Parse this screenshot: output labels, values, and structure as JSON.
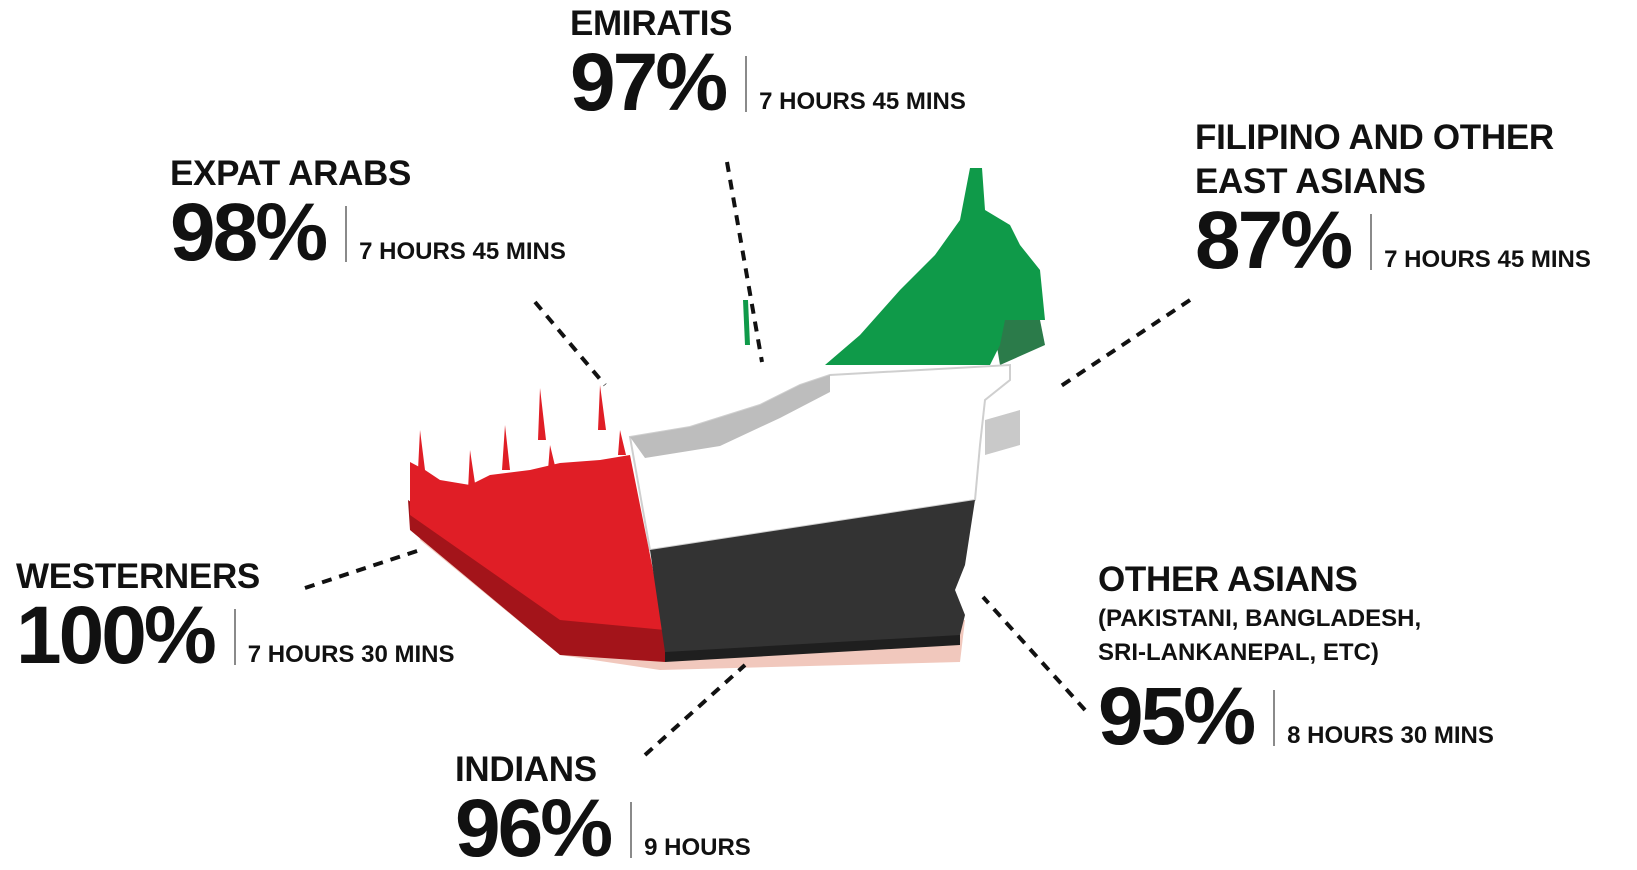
{
  "groups": [
    {
      "key": "emiratis",
      "name": "EMIRATIS",
      "percent": "97%",
      "hours": "7 HOURS 45 MINS"
    },
    {
      "key": "expat-arabs",
      "name": "EXPAT ARABS",
      "percent": "98%",
      "hours": "7 HOURS 45 MINS"
    },
    {
      "key": "filipino-east-asians",
      "name_line1": "FILIPINO AND OTHER",
      "name_line2": "EAST ASIANS",
      "percent": "87%",
      "hours": "7 HOURS 45 MINS"
    },
    {
      "key": "westerners",
      "name": "WESTERNERS",
      "percent": "100%",
      "hours": "7 HOURS 30 MINS"
    },
    {
      "key": "other-asians",
      "name": "OTHER ASIANS",
      "note_line1": "(PAKISTANI, BANGLADESH,",
      "note_line2": "SRI-LANKANEPAL, ETC)",
      "percent": "95%",
      "hours": "8 HOURS 30 MINS"
    },
    {
      "key": "indians",
      "name": "INDIANS",
      "percent": "96%",
      "hours": "9 HOURS"
    }
  ],
  "colors": {
    "flag_red": "#e01e26",
    "flag_green": "#0f9a49",
    "flag_black": "#333333",
    "flag_white": "#ffffff",
    "text": "#111111",
    "separator": "#8a8a8a"
  }
}
